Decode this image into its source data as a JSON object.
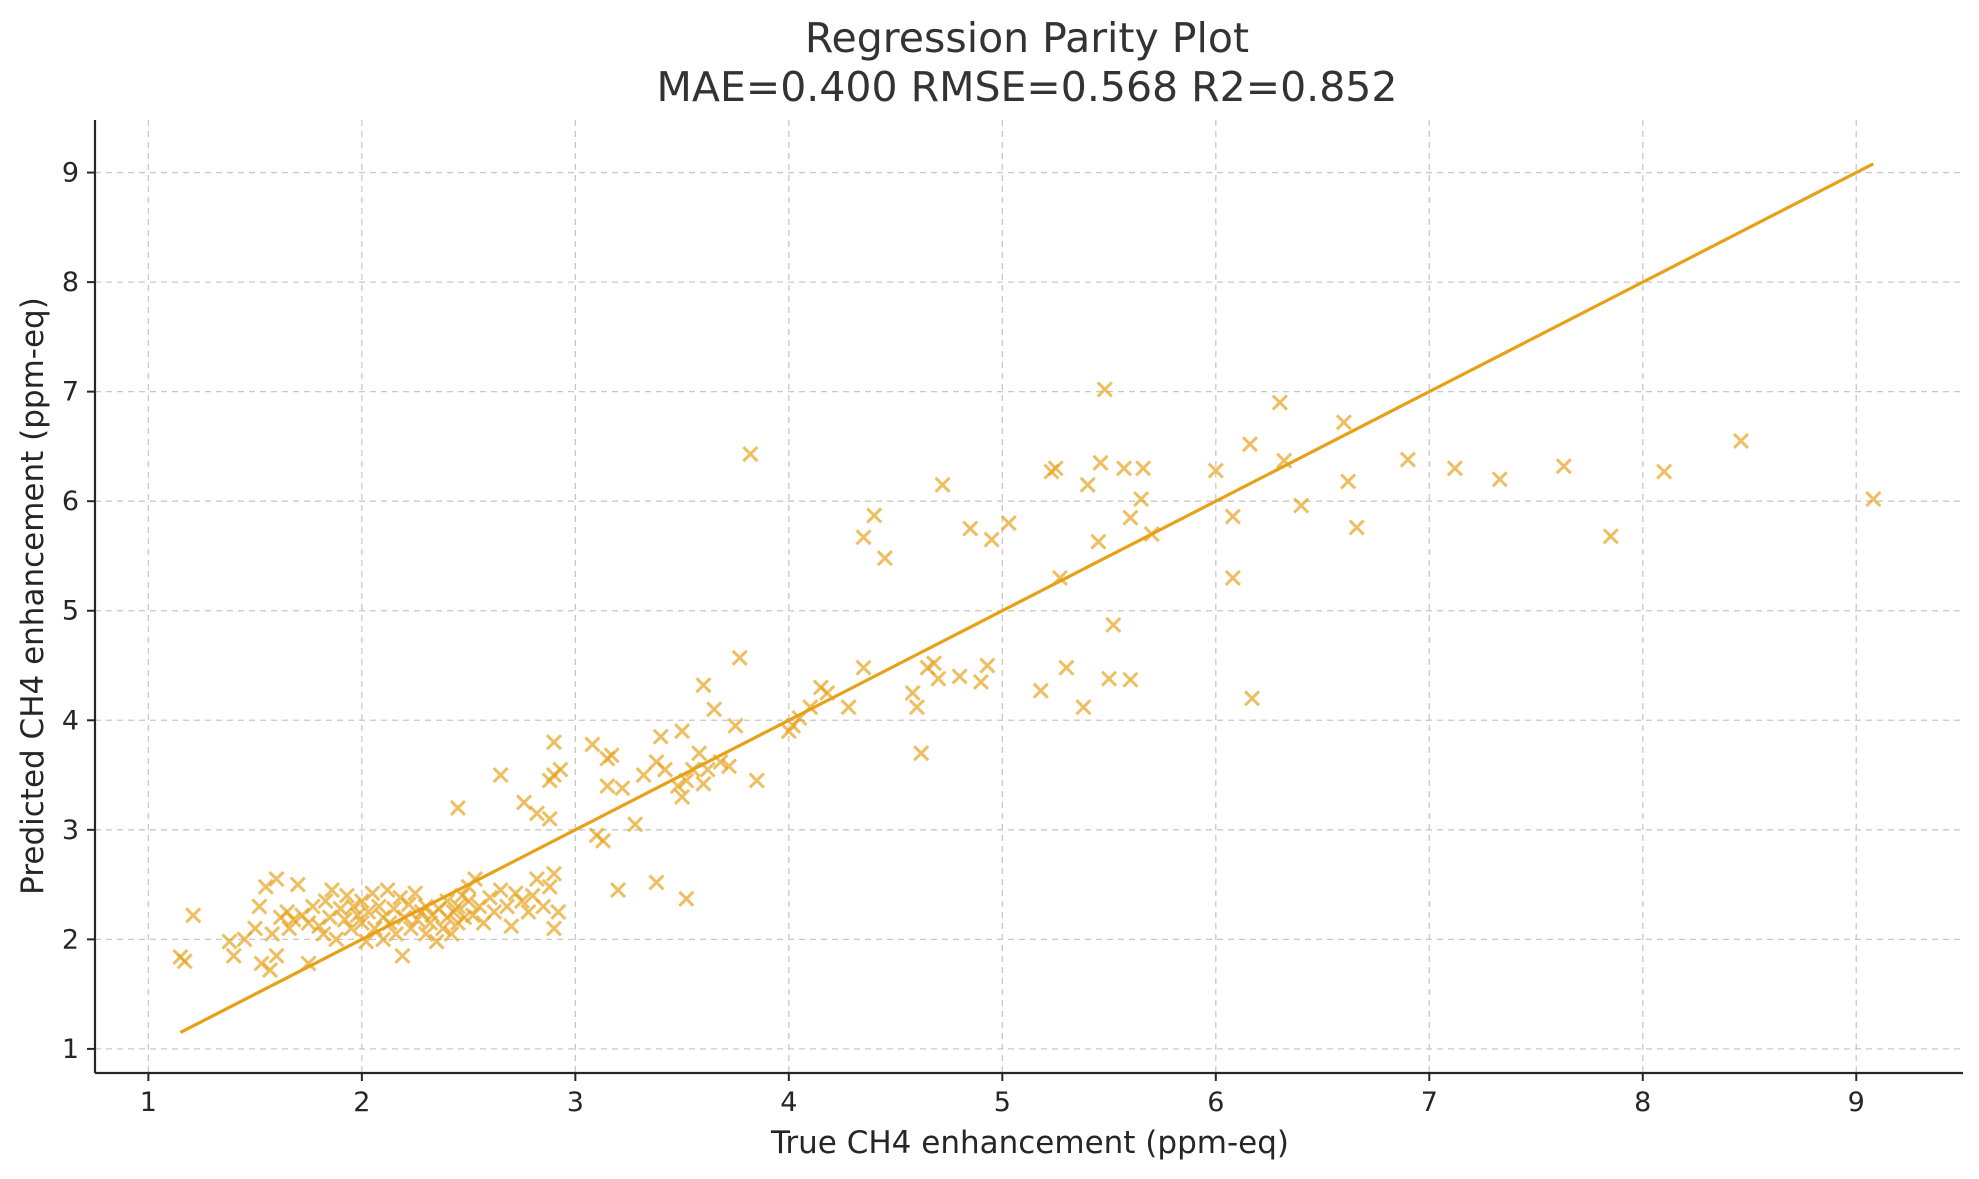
{
  "chart_data": {
    "type": "scatter",
    "title": "Regression Parity Plot",
    "subtitle": "MAE=0.400  RMSE=0.568  R2=0.852",
    "xlabel": "True CH4 enhancement (ppm-eq)",
    "ylabel": "Predicted CH4 enhancement (ppm-eq)",
    "xlim": [
      0.75,
      9.5
    ],
    "ylim": [
      0.78,
      9.48
    ],
    "xticks": [
      "1",
      "2",
      "3",
      "4",
      "5",
      "6",
      "7",
      "8",
      "9"
    ],
    "yticks": [
      "1",
      "2",
      "3",
      "4",
      "5",
      "6",
      "7",
      "8",
      "9"
    ],
    "grid": true,
    "color": "#E6A117",
    "marker": "x",
    "parity_line": {
      "x": [
        1.15,
        9.08
      ],
      "y": [
        1.15,
        9.08
      ]
    },
    "points": [
      [
        1.15,
        1.84
      ],
      [
        1.17,
        1.8
      ],
      [
        1.21,
        2.22
      ],
      [
        1.38,
        1.98
      ],
      [
        1.4,
        1.85
      ],
      [
        1.45,
        2.0
      ],
      [
        1.5,
        2.1
      ],
      [
        1.52,
        2.3
      ],
      [
        1.53,
        1.78
      ],
      [
        1.55,
        2.48
      ],
      [
        1.57,
        1.72
      ],
      [
        1.58,
        2.05
      ],
      [
        1.6,
        1.85
      ],
      [
        1.6,
        2.55
      ],
      [
        1.62,
        2.2
      ],
      [
        1.65,
        2.25
      ],
      [
        1.66,
        2.1
      ],
      [
        1.68,
        2.18
      ],
      [
        1.7,
        2.5
      ],
      [
        1.72,
        2.22
      ],
      [
        1.75,
        1.78
      ],
      [
        1.75,
        2.15
      ],
      [
        1.77,
        2.3
      ],
      [
        1.8,
        2.12
      ],
      [
        1.82,
        2.05
      ],
      [
        1.83,
        2.35
      ],
      [
        1.85,
        2.2
      ],
      [
        1.86,
        2.45
      ],
      [
        1.88,
        2.0
      ],
      [
        1.9,
        2.28
      ],
      [
        1.92,
        2.18
      ],
      [
        1.93,
        2.4
      ],
      [
        1.95,
        2.1
      ],
      [
        1.96,
        2.3
      ],
      [
        1.98,
        2.22
      ],
      [
        2.0,
        2.15
      ],
      [
        2.0,
        2.35
      ],
      [
        2.02,
        1.98
      ],
      [
        2.03,
        2.25
      ],
      [
        2.05,
        2.42
      ],
      [
        2.06,
        2.1
      ],
      [
        2.08,
        2.3
      ],
      [
        2.1,
        2.2
      ],
      [
        2.1,
        2.0
      ],
      [
        2.12,
        2.45
      ],
      [
        2.13,
        2.15
      ],
      [
        2.15,
        2.28
      ],
      [
        2.16,
        2.05
      ],
      [
        2.18,
        2.38
      ],
      [
        2.19,
        1.85
      ],
      [
        2.2,
        2.2
      ],
      [
        2.22,
        2.32
      ],
      [
        2.23,
        2.1
      ],
      [
        2.25,
        2.42
      ],
      [
        2.26,
        2.18
      ],
      [
        2.28,
        2.25
      ],
      [
        2.3,
        2.05
      ],
      [
        2.3,
        2.3
      ],
      [
        2.32,
        2.15
      ],
      [
        2.33,
        2.22
      ],
      [
        2.35,
        1.98
      ],
      [
        2.36,
        2.28
      ],
      [
        2.38,
        2.1
      ],
      [
        2.4,
        2.2
      ],
      [
        2.4,
        2.35
      ],
      [
        2.42,
        2.05
      ],
      [
        2.43,
        2.25
      ],
      [
        2.45,
        2.15
      ],
      [
        2.45,
        2.3
      ],
      [
        2.47,
        2.4
      ],
      [
        2.48,
        2.2
      ],
      [
        2.5,
        2.48
      ],
      [
        2.5,
        2.35
      ],
      [
        2.52,
        2.22
      ],
      [
        2.53,
        2.55
      ],
      [
        2.55,
        2.3
      ],
      [
        2.57,
        2.15
      ],
      [
        2.6,
        2.38
      ],
      [
        2.62,
        2.25
      ],
      [
        2.65,
        2.45
      ],
      [
        2.68,
        2.3
      ],
      [
        2.7,
        2.12
      ],
      [
        2.72,
        2.42
      ],
      [
        2.75,
        2.35
      ],
      [
        2.78,
        2.25
      ],
      [
        2.8,
        2.4
      ],
      [
        2.82,
        2.55
      ],
      [
        2.85,
        2.3
      ],
      [
        2.88,
        2.48
      ],
      [
        2.9,
        2.1
      ],
      [
        2.9,
        2.6
      ],
      [
        2.92,
        2.25
      ],
      [
        2.45,
        3.2
      ],
      [
        2.65,
        3.5
      ],
      [
        2.76,
        3.25
      ],
      [
        2.82,
        3.15
      ],
      [
        2.88,
        3.1
      ],
      [
        2.88,
        3.45
      ],
      [
        2.9,
        3.5
      ],
      [
        2.9,
        3.8
      ],
      [
        2.93,
        3.55
      ],
      [
        3.08,
        3.78
      ],
      [
        3.15,
        3.4
      ],
      [
        3.15,
        3.65
      ],
      [
        3.17,
        3.68
      ],
      [
        3.2,
        2.45
      ],
      [
        3.22,
        3.38
      ],
      [
        3.28,
        3.05
      ],
      [
        3.32,
        3.5
      ],
      [
        3.38,
        3.62
      ],
      [
        3.4,
        3.85
      ],
      [
        3.42,
        3.55
      ],
      [
        3.48,
        3.4
      ],
      [
        3.5,
        3.3
      ],
      [
        3.5,
        3.9
      ],
      [
        3.52,
        3.45
      ],
      [
        3.55,
        3.55
      ],
      [
        3.58,
        3.7
      ],
      [
        3.6,
        4.32
      ],
      [
        3.6,
        3.42
      ],
      [
        3.62,
        3.55
      ],
      [
        3.65,
        4.1
      ],
      [
        3.68,
        3.62
      ],
      [
        3.72,
        3.58
      ],
      [
        3.75,
        3.95
      ],
      [
        3.77,
        4.57
      ],
      [
        3.82,
        6.43
      ],
      [
        3.85,
        3.45
      ],
      [
        3.1,
        2.95
      ],
      [
        3.38,
        2.52
      ],
      [
        3.52,
        2.37
      ],
      [
        3.13,
        2.9
      ],
      [
        4.0,
        3.9
      ],
      [
        4.02,
        3.95
      ],
      [
        4.05,
        4.02
      ],
      [
        4.1,
        4.12
      ],
      [
        4.15,
        4.3
      ],
      [
        4.18,
        4.25
      ],
      [
        4.28,
        4.12
      ],
      [
        4.35,
        4.48
      ],
      [
        4.35,
        5.67
      ],
      [
        4.4,
        5.87
      ],
      [
        4.45,
        5.48
      ],
      [
        4.58,
        4.25
      ],
      [
        4.6,
        4.12
      ],
      [
        4.62,
        3.7
      ],
      [
        4.65,
        4.48
      ],
      [
        4.68,
        4.52
      ],
      [
        4.7,
        4.38
      ],
      [
        4.72,
        6.15
      ],
      [
        4.8,
        4.4
      ],
      [
        4.85,
        5.75
      ],
      [
        4.9,
        4.35
      ],
      [
        4.93,
        4.5
      ],
      [
        4.95,
        5.65
      ],
      [
        5.03,
        5.8
      ],
      [
        5.18,
        4.27
      ],
      [
        5.23,
        6.27
      ],
      [
        5.25,
        6.3
      ],
      [
        5.27,
        5.3
      ],
      [
        5.3,
        4.48
      ],
      [
        5.38,
        4.12
      ],
      [
        5.4,
        6.15
      ],
      [
        5.45,
        5.63
      ],
      [
        5.46,
        6.35
      ],
      [
        5.48,
        7.02
      ],
      [
        5.5,
        4.38
      ],
      [
        5.52,
        4.87
      ],
      [
        5.57,
        6.3
      ],
      [
        5.6,
        4.37
      ],
      [
        5.6,
        5.85
      ],
      [
        5.65,
        6.02
      ],
      [
        5.66,
        6.3
      ],
      [
        5.7,
        5.7
      ],
      [
        6.0,
        6.28
      ],
      [
        6.08,
        5.3
      ],
      [
        6.08,
        5.86
      ],
      [
        6.16,
        6.52
      ],
      [
        6.17,
        4.2
      ],
      [
        6.3,
        6.9
      ],
      [
        6.32,
        6.37
      ],
      [
        6.4,
        5.96
      ],
      [
        6.6,
        6.72
      ],
      [
        6.62,
        6.18
      ],
      [
        6.66,
        5.76
      ],
      [
        6.9,
        6.38
      ],
      [
        7.12,
        6.3
      ],
      [
        7.33,
        6.2
      ],
      [
        7.63,
        6.32
      ],
      [
        7.85,
        5.68
      ],
      [
        8.1,
        6.27
      ],
      [
        8.46,
        6.55
      ],
      [
        9.08,
        6.02
      ]
    ]
  }
}
